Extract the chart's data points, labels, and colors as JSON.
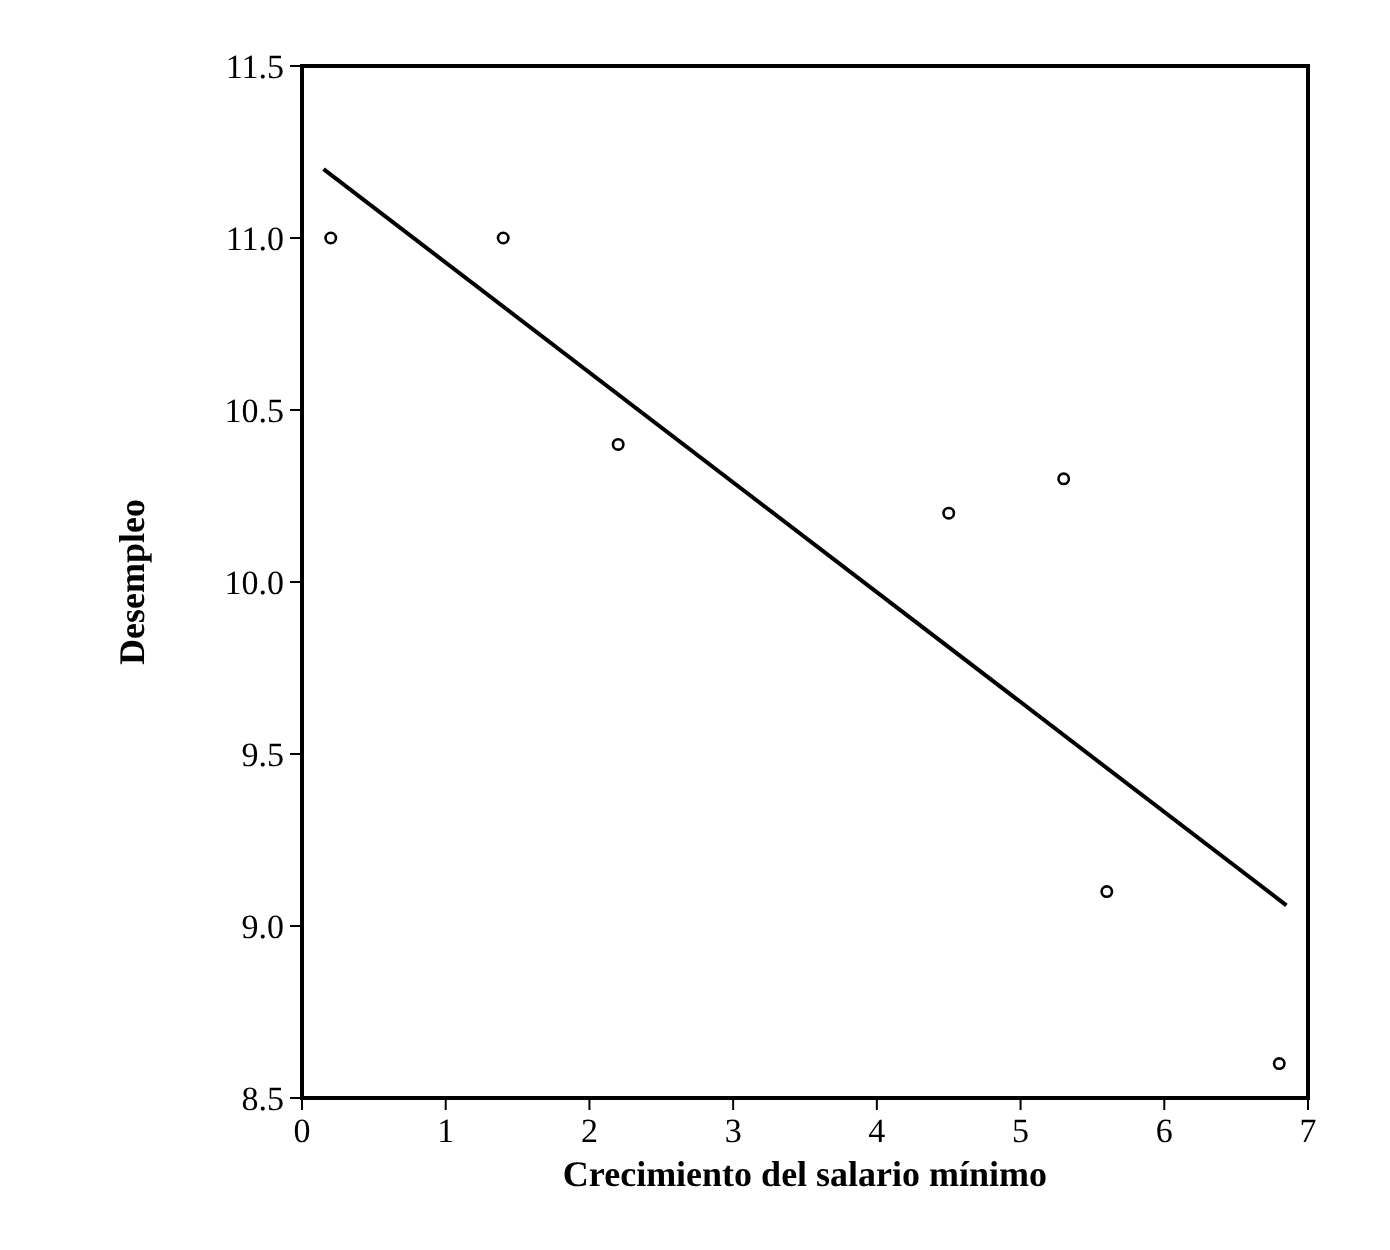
{
  "chart_data": {
    "type": "scatter",
    "xlabel": "Crecimiento del salario mínimo",
    "ylabel": "Desempleo",
    "xlim": [
      0,
      7
    ],
    "xticks": [
      0,
      1,
      2,
      3,
      4,
      5,
      6,
      7
    ],
    "ylim": [
      8.5,
      11.5
    ],
    "yticks": [
      {
        "value": 8.5,
        "label": "8.5"
      },
      {
        "value": 9,
        "label": "9.0"
      },
      {
        "value": 9.5,
        "label": "9.5"
      },
      {
        "value": 10,
        "label": "10.0"
      },
      {
        "value": 10.5,
        "label": "10.5"
      },
      {
        "value": 11,
        "label": "11.0"
      },
      {
        "value": 11.5,
        "label": "11.5"
      }
    ],
    "grid": false,
    "series": [
      {
        "marker": "circle",
        "color": "#000000",
        "x": [
          0.2,
          1.4,
          2.2,
          4.5,
          5.3,
          5.6,
          6.8
        ],
        "values": [
          11.0,
          11.0,
          10.4,
          10.2,
          10.3,
          9.1,
          8.6
        ]
      },
      {
        "type": "line",
        "color": "#000000",
        "x": [
          0.15,
          6.85
        ],
        "values": [
          11.2,
          9.06
        ]
      }
    ]
  }
}
